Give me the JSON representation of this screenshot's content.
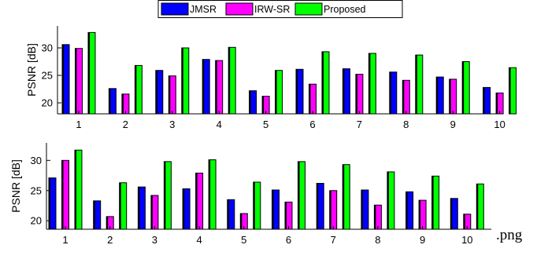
{
  "file_suffix": ".png",
  "colors": {
    "JMSR": "#0000ff",
    "IRW-SR": "#ff00ff",
    "Proposed": "#00ff00"
  },
  "legend": [
    "JMSR",
    "IRW-SR",
    "Proposed"
  ],
  "chart_data": [
    {
      "type": "bar",
      "categories": [
        "1",
        "2",
        "3",
        "4",
        "5",
        "6",
        "7",
        "8",
        "9",
        "10"
      ],
      "ylabel": "PSNR [dB]",
      "ylim": [
        18,
        34
      ],
      "yticks": [
        20,
        25,
        30
      ],
      "series": [
        {
          "name": "JMSR",
          "values": [
            30.6,
            22.6,
            25.9,
            27.9,
            22.2,
            26.1,
            26.2,
            25.6,
            24.7,
            22.8
          ]
        },
        {
          "name": "IRW-SR",
          "values": [
            29.9,
            21.6,
            24.9,
            27.7,
            21.2,
            23.4,
            25.2,
            24.1,
            24.3,
            21.8
          ]
        },
        {
          "name": "Proposed",
          "values": [
            32.8,
            26.8,
            30.0,
            30.1,
            25.9,
            29.3,
            29.0,
            28.7,
            27.5,
            26.4
          ]
        }
      ]
    },
    {
      "type": "bar",
      "categories": [
        "1",
        "2",
        "3",
        "4",
        "5",
        "6",
        "7",
        "8",
        "9",
        "10"
      ],
      "ylabel": "PSNR [dB]",
      "ylim": [
        18.6,
        32.9
      ],
      "yticks": [
        20,
        25,
        30
      ],
      "series": [
        {
          "name": "JMSR",
          "values": [
            27.1,
            23.3,
            25.6,
            25.3,
            23.5,
            25.1,
            26.2,
            25.1,
            24.8,
            23.7
          ]
        },
        {
          "name": "IRW-SR",
          "values": [
            30.0,
            20.7,
            24.2,
            27.9,
            21.2,
            23.1,
            25.0,
            22.6,
            23.4,
            21.1
          ]
        },
        {
          "name": "Proposed",
          "values": [
            31.7,
            26.3,
            29.8,
            30.1,
            26.4,
            29.8,
            29.3,
            28.1,
            27.4,
            26.1
          ]
        }
      ]
    }
  ]
}
